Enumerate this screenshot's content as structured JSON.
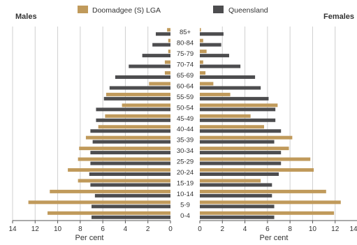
{
  "chart_data": {
    "type": "bar",
    "orientation": "horizontal-population-pyramid",
    "left_title": "Males",
    "right_title": "Females",
    "xlabel_left": "Per cent",
    "xlabel_right": "Per cent",
    "xlim": [
      0,
      14
    ],
    "xticks": [
      "14",
      "12",
      "10",
      "8",
      "6",
      "4",
      "2",
      "0"
    ],
    "xticks_right": [
      "0",
      "2",
      "4",
      "6",
      "8",
      "10",
      "12",
      "14"
    ],
    "grid": true,
    "legend_position": "top-center",
    "categories": [
      "85+",
      "80-84",
      "75-79",
      "70-74",
      "65-69",
      "60-64",
      "55-59",
      "50-54",
      "45-49",
      "40-44",
      "35-39",
      "30-34",
      "25-29",
      "20-24",
      "15-19",
      "10-14",
      "5-9",
      "0-4"
    ],
    "series": [
      {
        "name": "Doomadgee (S) LGA",
        "color": "#c09a5b",
        "males": [
          0.3,
          0.2,
          0.2,
          0.5,
          0.5,
          1.9,
          5.7,
          4.3,
          5.8,
          6.4,
          7.5,
          8.1,
          8.2,
          9.1,
          8.2,
          10.7,
          12.6,
          10.9
        ],
        "females": [
          0.1,
          0.3,
          0.6,
          0.3,
          0.5,
          1.2,
          2.7,
          6.9,
          4.5,
          5.7,
          8.2,
          7.9,
          9.8,
          10.1,
          5.4,
          11.2,
          12.5,
          11.9
        ]
      },
      {
        "name": "Queensland",
        "color": "#4d4d4f",
        "males": [
          1.3,
          1.6,
          2.5,
          3.7,
          4.9,
          5.4,
          5.9,
          6.6,
          6.6,
          7.1,
          6.9,
          7.1,
          7.1,
          7.2,
          7.1,
          6.7,
          7.0,
          7.0
        ],
        "females": [
          2.1,
          1.9,
          2.6,
          3.6,
          4.9,
          5.4,
          6.1,
          6.7,
          6.7,
          7.2,
          6.6,
          7.2,
          7.2,
          7.0,
          6.4,
          6.4,
          6.6,
          6.6
        ]
      }
    ]
  }
}
